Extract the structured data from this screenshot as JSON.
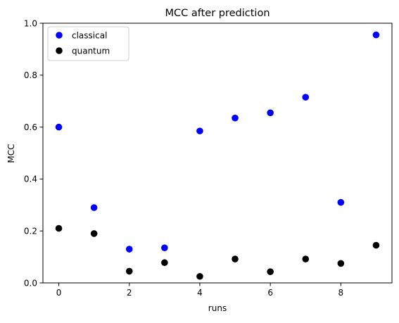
{
  "chart_data": {
    "type": "scatter",
    "title": "MCC after prediction",
    "xlabel": "runs",
    "ylabel": "MCC",
    "xlim": [
      -0.45,
      9.45
    ],
    "ylim": [
      0.0,
      1.0
    ],
    "x_ticks": [
      0,
      2,
      4,
      6,
      8
    ],
    "x_tick_labels": [
      "0",
      "2",
      "4",
      "6",
      "8"
    ],
    "y_ticks": [
      0.0,
      0.2,
      0.4,
      0.6,
      0.8,
      1.0
    ],
    "y_tick_labels": [
      "0.0",
      "0.2",
      "0.4",
      "0.6",
      "0.8",
      "1.0"
    ],
    "grid": false,
    "legend_position": "top-left",
    "series": [
      {
        "name": "classical",
        "color": "#0000ff",
        "x": [
          0,
          1,
          2,
          3,
          4,
          5,
          6,
          7,
          8,
          9
        ],
        "y": [
          0.6,
          0.29,
          0.13,
          0.135,
          0.585,
          0.635,
          0.655,
          0.715,
          0.31,
          0.955
        ]
      },
      {
        "name": "quantum",
        "color": "#000000",
        "x": [
          0,
          1,
          2,
          3,
          4,
          5,
          6,
          7,
          8,
          9
        ],
        "y": [
          0.21,
          0.19,
          0.045,
          0.078,
          0.025,
          0.092,
          0.043,
          0.092,
          0.075,
          0.145
        ]
      }
    ]
  }
}
